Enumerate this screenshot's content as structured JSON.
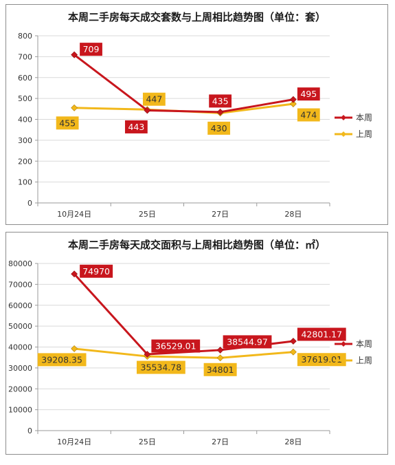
{
  "colors": {
    "this_week": "#c8161d",
    "last_week": "#f2b81b",
    "grid": "#d9d9d9",
    "axis": "#9a9a9a"
  },
  "chart_data": [
    {
      "type": "line",
      "title": "本周二手房每天成交套数与上周相比趋势图（单位：套）",
      "categories": [
        "10月24日",
        "25日",
        "27日",
        "28日"
      ],
      "ylim": [
        0,
        800
      ],
      "yticks": [
        0,
        100,
        200,
        300,
        400,
        500,
        600,
        700,
        800
      ],
      "grid": true,
      "legend_position": "right",
      "series": [
        {
          "name": "本周",
          "values": [
            709,
            443,
            435,
            495
          ],
          "labels": [
            "709",
            "443",
            "435",
            "495"
          ],
          "color": "#c8161d",
          "marker": "diamond"
        },
        {
          "name": "上周",
          "values": [
            455,
            447,
            430,
            474
          ],
          "labels": [
            "455",
            "447",
            "430",
            "474"
          ],
          "color": "#f2b81b",
          "marker": "diamond"
        }
      ]
    },
    {
      "type": "line",
      "title": "本周二手房每天成交面积与上周相比趋势图（单位：㎡）",
      "categories": [
        "10月24日",
        "25日",
        "27日",
        "28日"
      ],
      "ylim": [
        0,
        80000
      ],
      "yticks": [
        0,
        10000,
        20000,
        30000,
        40000,
        50000,
        60000,
        70000,
        80000
      ],
      "grid": true,
      "legend_position": "right",
      "series": [
        {
          "name": "本周",
          "values": [
            74970,
            36529.01,
            38544.97,
            42801.17
          ],
          "labels": [
            "74970",
            "36529.01",
            "38544.97",
            "42801.17"
          ],
          "color": "#c8161d",
          "marker": "diamond"
        },
        {
          "name": "上周",
          "values": [
            39208.35,
            35534.78,
            34801,
            37619.01
          ],
          "labels": [
            "39208.35",
            "35534.78",
            "34801",
            "37619.01"
          ],
          "color": "#f2b81b",
          "marker": "diamond"
        }
      ]
    }
  ]
}
